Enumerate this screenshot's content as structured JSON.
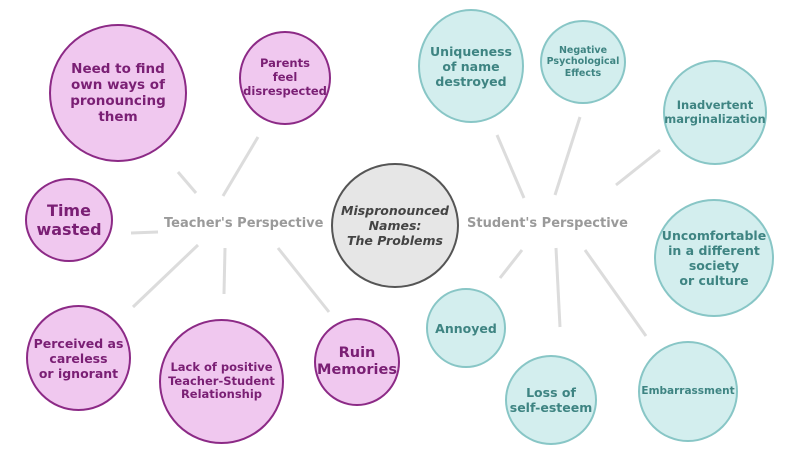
{
  "center": {
    "label": "Mispronounced\nNames:\nThe Problems"
  },
  "teacher_label": "Teacher's Perspective",
  "student_label": "Student's Perspective",
  "teacher_nodes": [
    "Need to find\nown ways of\npronouncing\nthem",
    "Parents\nfeel\ndisrespected",
    "Time\nwasted",
    "Perceived as\ncareless\nor ignorant",
    "Lack of positive\nTeacher-Student\nRelationship",
    "Ruin\nMemories"
  ],
  "student_nodes": [
    "Uniqueness\nof name\ndestroyed",
    "Negative\nPsychological\nEffects",
    "Inadvertent\nmarginalization",
    "Uncomfortable\nin a different\nsociety\nor culture",
    "Annoyed",
    "Loss of\nself-esteem",
    "Embarrassment"
  ],
  "colors": {
    "teacher_fill": "#f0c8ef",
    "teacher_border": "#8c2a86",
    "student_fill": "#d3eeee",
    "student_border": "#88c6c6",
    "center_fill": "#e6e6e6",
    "connector": "#dcdcdc"
  }
}
